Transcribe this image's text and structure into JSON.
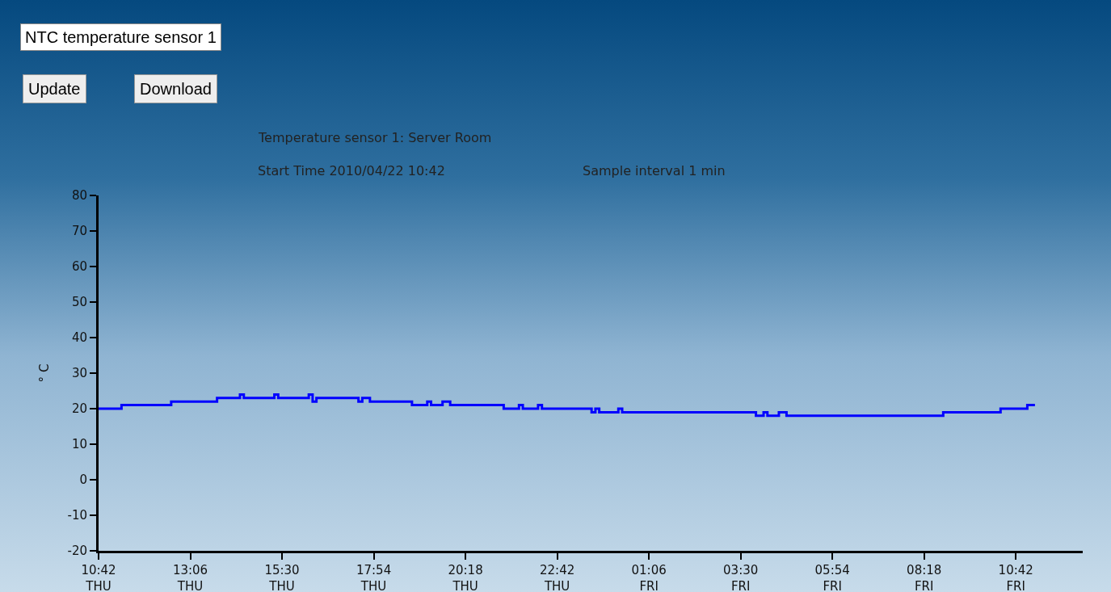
{
  "chart_data": {
    "type": "step",
    "title": "Temperature sensor 1: Server Room",
    "subtitle": "Start Time 2010/04/22 10:42",
    "ylabel": "° C",
    "annotations": [
      "NTC temperature sensor 1",
      "Update",
      "Download",
      "Sample interval 1 min"
    ],
    "x": [
      "2010-04-22T10:42",
      "2010-04-22T11:18",
      "2010-04-22T12:36",
      "2010-04-22T13:48",
      "2010-04-22T14:24",
      "2010-04-22T14:30",
      "2010-04-22T15:18",
      "2010-04-22T15:24",
      "2010-04-22T16:12",
      "2010-04-22T16:18",
      "2010-04-22T16:24",
      "2010-04-22T17:30",
      "2010-04-22T17:36",
      "2010-04-22T17:48",
      "2010-04-22T18:24",
      "2010-04-22T18:54",
      "2010-04-22T19:18",
      "2010-04-22T19:24",
      "2010-04-22T19:42",
      "2010-04-22T19:54",
      "2010-04-22T21:18",
      "2010-04-22T21:42",
      "2010-04-22T21:48",
      "2010-04-22T22:12",
      "2010-04-22T22:18",
      "2010-04-22T23:36",
      "2010-04-22T23:42",
      "2010-04-22T23:48",
      "2010-04-23T00:18",
      "2010-04-23T00:24",
      "2010-04-23T03:54",
      "2010-04-23T04:06",
      "2010-04-23T04:12",
      "2010-04-23T04:30",
      "2010-04-23T04:42",
      "2010-04-23T08:48",
      "2010-04-23T10:18",
      "2010-04-23T11:00",
      "2010-04-23T11:12"
    ],
    "series": [
      {
        "color": "#0000ff",
        "values": [
          20,
          21,
          22,
          23,
          24,
          23,
          24,
          23,
          24,
          22,
          23,
          22,
          23,
          22,
          22,
          21,
          22,
          21,
          22,
          21,
          20,
          21,
          20,
          21,
          20,
          19,
          20,
          19,
          20,
          19,
          18,
          19,
          18,
          19,
          18,
          19,
          20,
          21,
          21
        ]
      }
    ],
    "xlim": [
      "2010-04-22T10:42",
      "2010-04-23T12:27"
    ],
    "xticks": [
      {
        "value": "2010-04-22T10:42",
        "label": "10:42\nTHU"
      },
      {
        "value": "2010-04-22T13:06",
        "label": "13:06\nTHU"
      },
      {
        "value": "2010-04-22T15:30",
        "label": "15:30\nTHU"
      },
      {
        "value": "2010-04-22T17:54",
        "label": "17:54\nTHU"
      },
      {
        "value": "2010-04-22T20:18",
        "label": "20:18\nTHU"
      },
      {
        "value": "2010-04-22T22:42",
        "label": "22:42\nTHU"
      },
      {
        "value": "2010-04-23T01:06",
        "label": "01:06\nFRI"
      },
      {
        "value": "2010-04-23T03:30",
        "label": "03:30\nFRI"
      },
      {
        "value": "2010-04-23T05:54",
        "label": "05:54\nFRI"
      },
      {
        "value": "2010-04-23T08:18",
        "label": "08:18\nFRI"
      },
      {
        "value": "2010-04-23T10:42",
        "label": "10:42\nFRI"
      }
    ],
    "ylim": [
      -20,
      80
    ],
    "yticks": [
      -20,
      -10,
      0,
      10,
      20,
      30,
      40,
      50,
      60,
      70,
      80
    ],
    "grid": false,
    "marker": "none",
    "line_style": "solid"
  }
}
